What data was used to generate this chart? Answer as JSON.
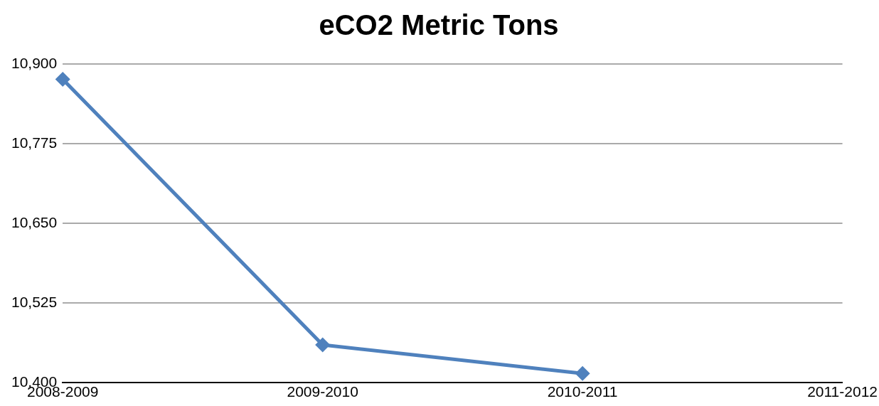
{
  "chart_data": {
    "type": "line",
    "title": "eCO2 Metric Tons",
    "categories": [
      "2008-2009",
      "2009-2010",
      "2010-2011",
      "2011-2012"
    ],
    "series": [
      {
        "color": "#4f81bd",
        "values": [
          10876,
          10459,
          10414,
          null
        ]
      }
    ],
    "ylim": [
      10400,
      10900
    ],
    "yticks": [
      {
        "value": 10400,
        "label": "10,400"
      },
      {
        "value": 10525,
        "label": "10,525"
      },
      {
        "value": 10650,
        "label": "10,650"
      },
      {
        "value": 10775,
        "label": "10,775"
      },
      {
        "value": 10900,
        "label": "10,900"
      }
    ],
    "grid": "y",
    "legend": false,
    "marker": "diamond",
    "line_style": "solid"
  }
}
